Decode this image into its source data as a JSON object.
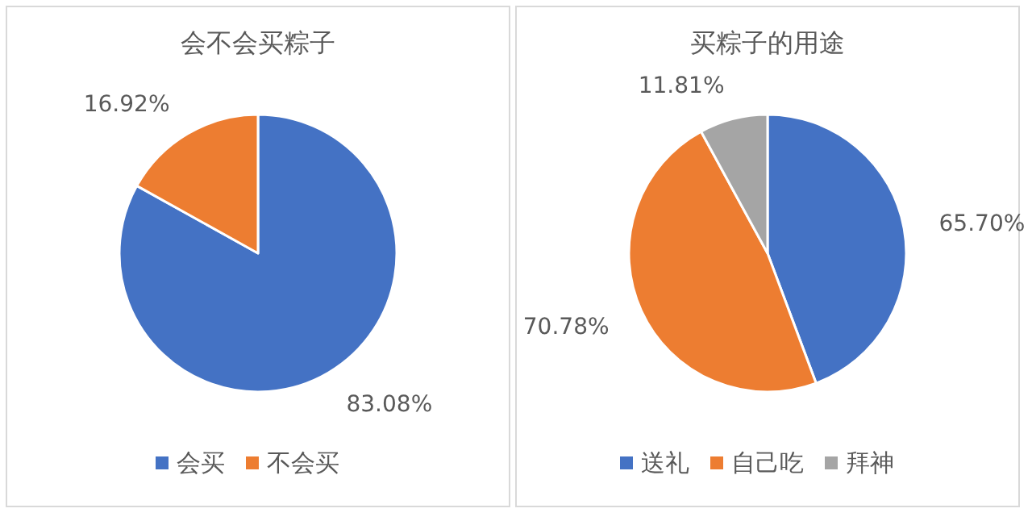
{
  "chart_data": [
    {
      "type": "pie",
      "title": "会不会买粽子",
      "categories": [
        "会买",
        "不会买"
      ],
      "values": [
        83.08,
        16.92
      ],
      "colors": [
        "#4472c4",
        "#ed7d31"
      ],
      "value_labels": [
        "83.08%",
        "16.92%"
      ],
      "legend": "bottom"
    },
    {
      "type": "pie",
      "title": "买粽子的用途",
      "categories": [
        "送礼",
        "自己吃",
        "拜神"
      ],
      "values": [
        65.7,
        70.78,
        11.81
      ],
      "colors": [
        "#4472c4",
        "#ed7d31",
        "#a5a5a5"
      ],
      "value_labels": [
        "65.70%",
        "70.78%",
        "11.81%"
      ],
      "legend": "bottom"
    }
  ]
}
